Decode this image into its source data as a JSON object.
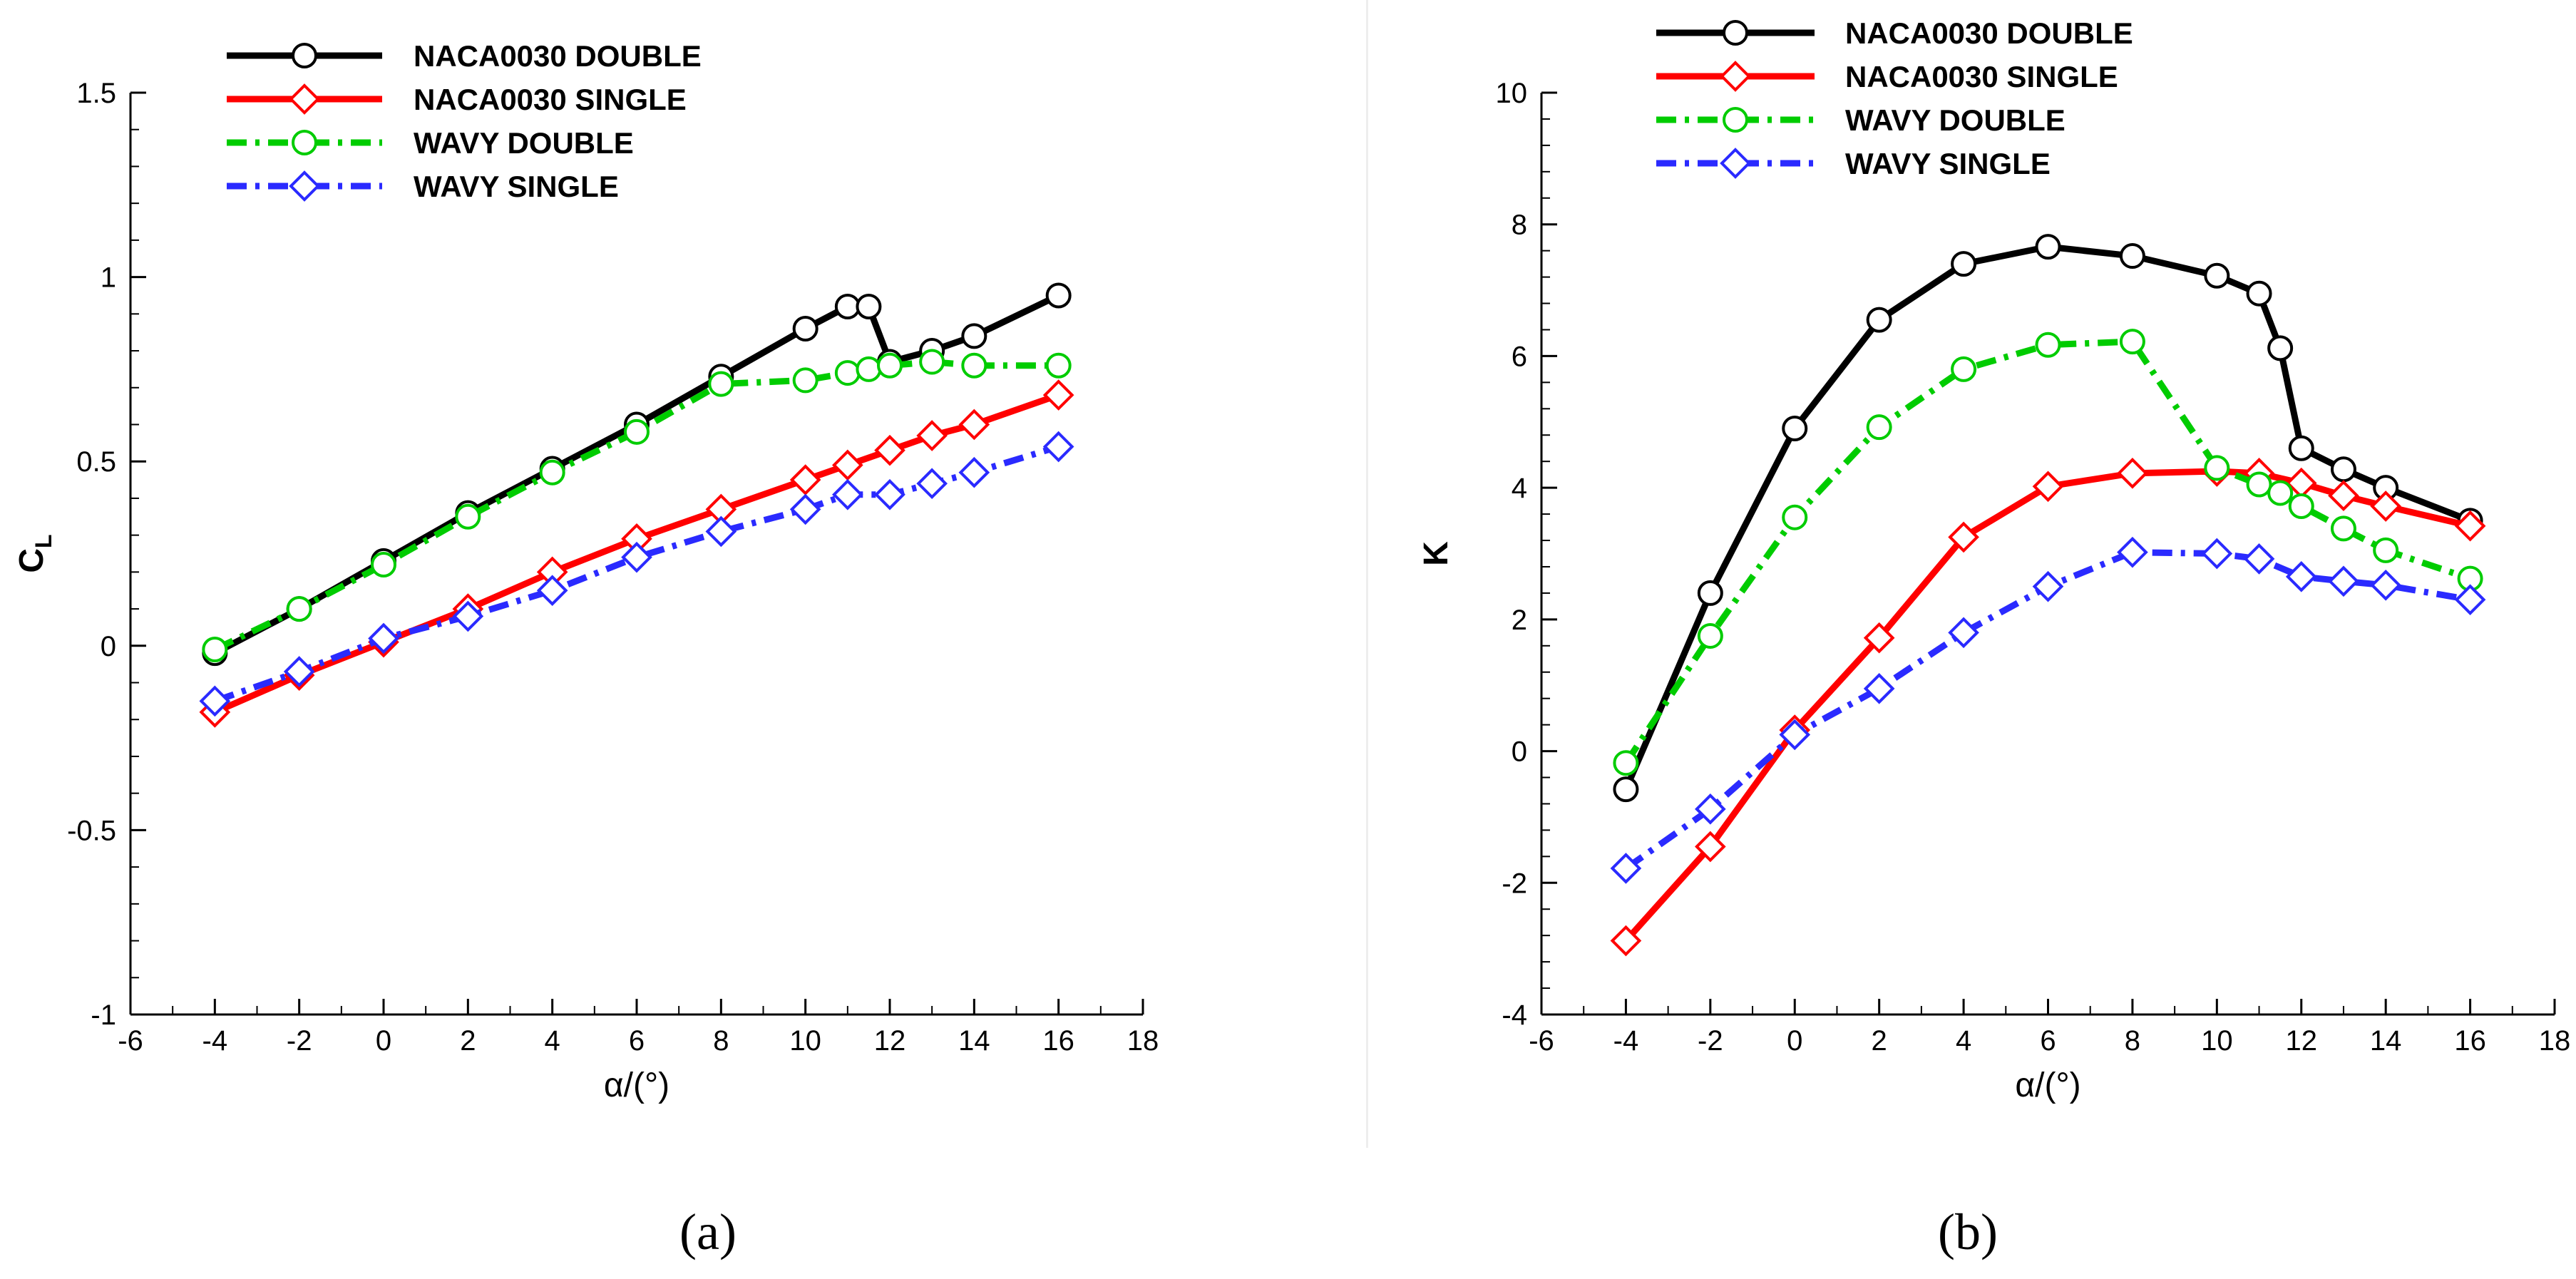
{
  "colors": {
    "naca_double": "#000000",
    "naca_single": "#ff0000",
    "wavy_double": "#00cc00",
    "wavy_single": "#2a2aff",
    "divider": "#e8e8e8"
  },
  "chart_data": [
    {
      "type": "line",
      "panel_label": "(a)",
      "xlabel": "α/(°)",
      "ylabel": "C",
      "ylabel_sub": "L",
      "xlim": [
        -6,
        18
      ],
      "ylim": [
        -1,
        1.5
      ],
      "xticks": [
        -6,
        -4,
        -2,
        0,
        2,
        4,
        6,
        8,
        10,
        12,
        14,
        16,
        18
      ],
      "xtick_labels": [
        "-6",
        "-4",
        "-2",
        "0",
        "2",
        "4",
        "6",
        "8",
        "10",
        "12",
        "14",
        "16",
        "18"
      ],
      "yticks": [
        -1,
        -0.5,
        0,
        0.5,
        1,
        1.5
      ],
      "ytick_labels": [
        "-1",
        "-0.5",
        "0",
        "0.5",
        "1",
        "1.5"
      ],
      "legend_position": "top-left",
      "series": [
        {
          "name": "NACA0030 DOUBLE",
          "style": "solid",
          "marker": "circle",
          "color_key": "naca_double",
          "x": [
            -4,
            -2,
            0,
            2,
            4,
            6,
            8,
            10,
            11,
            11.5,
            12,
            13,
            14,
            16
          ],
          "y": [
            -0.02,
            0.1,
            0.23,
            0.36,
            0.48,
            0.6,
            0.73,
            0.86,
            0.92,
            0.92,
            0.77,
            0.8,
            0.84,
            0.95
          ]
        },
        {
          "name": "NACA0030 SINGLE",
          "style": "solid",
          "marker": "diamond",
          "color_key": "naca_single",
          "x": [
            -4,
            -2,
            0,
            2,
            4,
            6,
            8,
            10,
            11,
            12,
            13,
            14,
            16
          ],
          "y": [
            -0.18,
            -0.08,
            0.01,
            0.1,
            0.2,
            0.29,
            0.37,
            0.45,
            0.49,
            0.53,
            0.57,
            0.6,
            0.68
          ]
        },
        {
          "name": "WAVY DOUBLE",
          "style": "dashdot",
          "marker": "circle",
          "color_key": "wavy_double",
          "x": [
            -4,
            -2,
            0,
            2,
            4,
            6,
            8,
            10,
            11,
            11.5,
            12,
            13,
            14,
            16
          ],
          "y": [
            -0.01,
            0.1,
            0.22,
            0.35,
            0.47,
            0.58,
            0.71,
            0.72,
            0.74,
            0.75,
            0.76,
            0.77,
            0.76,
            0.76
          ]
        },
        {
          "name": "WAVY SINGLE",
          "style": "dashdot",
          "marker": "diamond",
          "color_key": "wavy_single",
          "x": [
            -4,
            -2,
            0,
            2,
            4,
            6,
            8,
            10,
            11,
            12,
            13,
            14,
            16
          ],
          "y": [
            -0.15,
            -0.07,
            0.02,
            0.08,
            0.15,
            0.24,
            0.31,
            0.37,
            0.41,
            0.41,
            0.44,
            0.47,
            0.54
          ]
        }
      ]
    },
    {
      "type": "line",
      "panel_label": "(b)",
      "xlabel": "α/(°)",
      "ylabel": "K",
      "ylabel_sub": "",
      "xlim": [
        -6,
        18
      ],
      "ylim": [
        -4,
        10
      ],
      "xticks": [
        -6,
        -4,
        -2,
        0,
        2,
        4,
        6,
        8,
        10,
        12,
        14,
        16,
        18
      ],
      "xtick_labels": [
        "-6",
        "-4",
        "-2",
        "0",
        "2",
        "4",
        "6",
        "8",
        "10",
        "12",
        "14",
        "16",
        "18"
      ],
      "yticks": [
        -4,
        -2,
        0,
        2,
        4,
        6,
        8,
        10
      ],
      "ytick_labels": [
        "-4",
        "-2",
        "0",
        "2",
        "4",
        "6",
        "8",
        "10"
      ],
      "legend_position": "top-left",
      "series": [
        {
          "name": "NACA0030 DOUBLE",
          "style": "solid",
          "marker": "circle",
          "color_key": "naca_double",
          "x": [
            -4,
            -2,
            0,
            2,
            4,
            6,
            8,
            10,
            11,
            11.5,
            12,
            13,
            14,
            16
          ],
          "y": [
            -0.58,
            2.4,
            4.9,
            6.55,
            7.4,
            7.66,
            7.52,
            7.22,
            6.95,
            6.12,
            4.6,
            4.28,
            4.0,
            3.5
          ]
        },
        {
          "name": "NACA0030 SINGLE",
          "style": "solid",
          "marker": "diamond",
          "color_key": "naca_single",
          "x": [
            -4,
            -2,
            0,
            2,
            4,
            6,
            8,
            10,
            11,
            12,
            13,
            14,
            16
          ],
          "y": [
            -2.88,
            -1.45,
            0.32,
            1.72,
            3.25,
            4.02,
            4.22,
            4.25,
            4.22,
            4.07,
            3.88,
            3.72,
            3.42
          ]
        },
        {
          "name": "WAVY DOUBLE",
          "style": "dashdot",
          "marker": "circle",
          "color_key": "wavy_double",
          "x": [
            -4,
            -2,
            0,
            2,
            4,
            6,
            8,
            10,
            11,
            11.5,
            12,
            13,
            14,
            16
          ],
          "y": [
            -0.18,
            1.75,
            3.55,
            4.92,
            5.8,
            6.17,
            6.22,
            4.3,
            4.05,
            3.92,
            3.72,
            3.38,
            3.05,
            2.62
          ]
        },
        {
          "name": "WAVY SINGLE",
          "style": "dashdot",
          "marker": "diamond",
          "color_key": "wavy_single",
          "x": [
            -4,
            -2,
            0,
            2,
            4,
            6,
            8,
            10,
            11,
            12,
            13,
            14,
            16
          ],
          "y": [
            -1.78,
            -0.88,
            0.25,
            0.95,
            1.8,
            2.5,
            3.02,
            3.0,
            2.92,
            2.65,
            2.58,
            2.52,
            2.3
          ]
        }
      ]
    }
  ]
}
